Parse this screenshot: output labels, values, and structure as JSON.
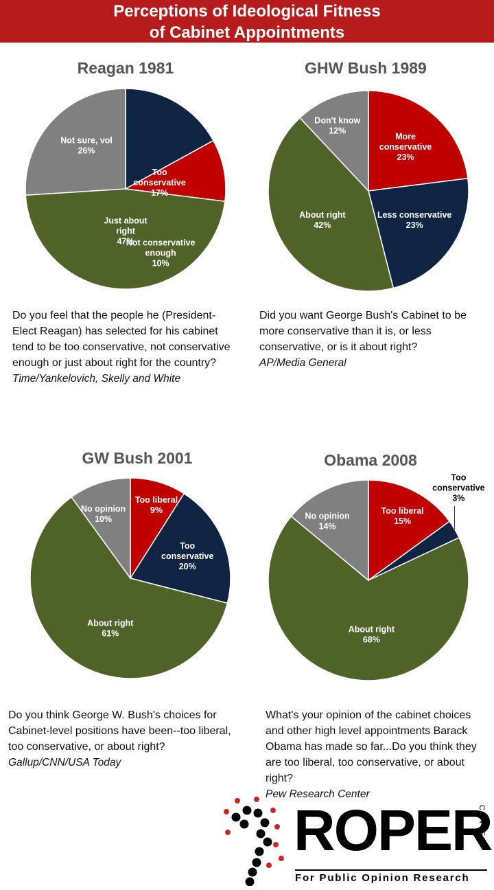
{
  "header": {
    "title_line1": "Perceptions of Ideological Fitness",
    "title_line2": "of Cabinet Appointments"
  },
  "chart_data": [
    {
      "type": "pie",
      "title": "Reagan 1981",
      "slices": [
        {
          "label": "Too\nconservative",
          "pct": "17%",
          "value": 17,
          "color": "#0f2443"
        },
        {
          "label": "Not conservative\nenough",
          "pct": "10%",
          "value": 10,
          "color": "#c00000"
        },
        {
          "label": "Just about\nright",
          "pct": "47%",
          "value": 47,
          "color": "#4f6228"
        },
        {
          "label": "Not sure, vol",
          "pct": "26%",
          "value": 26,
          "color": "#808080"
        }
      ],
      "question": "Do you feel that the people he (President-Elect Reagan) has selected for his cabinet tend to be too conservative, not conservative enough or just about right for the country?",
      "source": "Time/Yankelovich, Skelly and White"
    },
    {
      "type": "pie",
      "title": "GHW Bush 1989",
      "slices": [
        {
          "label": "More\nconservative",
          "pct": "23%",
          "value": 23,
          "color": "#c00000"
        },
        {
          "label": "Less conservative",
          "pct": "23%",
          "value": 23,
          "color": "#0f2443"
        },
        {
          "label": "About right",
          "pct": "42%",
          "value": 42,
          "color": "#4f6228"
        },
        {
          "label": "Don't know",
          "pct": "12%",
          "value": 12,
          "color": "#808080"
        }
      ],
      "question": "Did you want George Bush's Cabinet to be more conservative than it is, or less conservative, or is it about right?",
      "source": "AP/Media General"
    },
    {
      "type": "pie",
      "title": "GW Bush 2001",
      "slices": [
        {
          "label": "Too liberal",
          "pct": "9%",
          "value": 9,
          "color": "#c00000"
        },
        {
          "label": "Too\nconservative",
          "pct": "20%",
          "value": 20,
          "color": "#0f2443"
        },
        {
          "label": "About right",
          "pct": "61%",
          "value": 61,
          "color": "#4f6228"
        },
        {
          "label": "No opinion",
          "pct": "10%",
          "value": 10,
          "color": "#808080"
        }
      ],
      "question": "Do you think George W. Bush's choices for Cabinet-level positions have been--too liberal, too conservative, or about right?",
      "source": "Gallup/CNN/USA Today"
    },
    {
      "type": "pie",
      "title": "Obama 2008",
      "slices": [
        {
          "label": "Too liberal",
          "pct": "15%",
          "value": 15,
          "color": "#c00000"
        },
        {
          "label": "Too\nconservative",
          "pct": "3%",
          "value": 3,
          "color": "#0f2443"
        },
        {
          "label": "About right",
          "pct": "68%",
          "value": 68,
          "color": "#4f6228"
        },
        {
          "label": "No opinion",
          "pct": "14%",
          "value": 14,
          "color": "#808080"
        }
      ],
      "question": "What's your opinion of the cabinet choices and other high level appointments Barack Obama has made so far...Do you think they are too liberal, too conservative, or about right?",
      "source": "Pew Research Center"
    }
  ],
  "logo": {
    "word": "ROPER",
    "side": "CENTER",
    "subtitle": "For Public Opinion Research"
  }
}
